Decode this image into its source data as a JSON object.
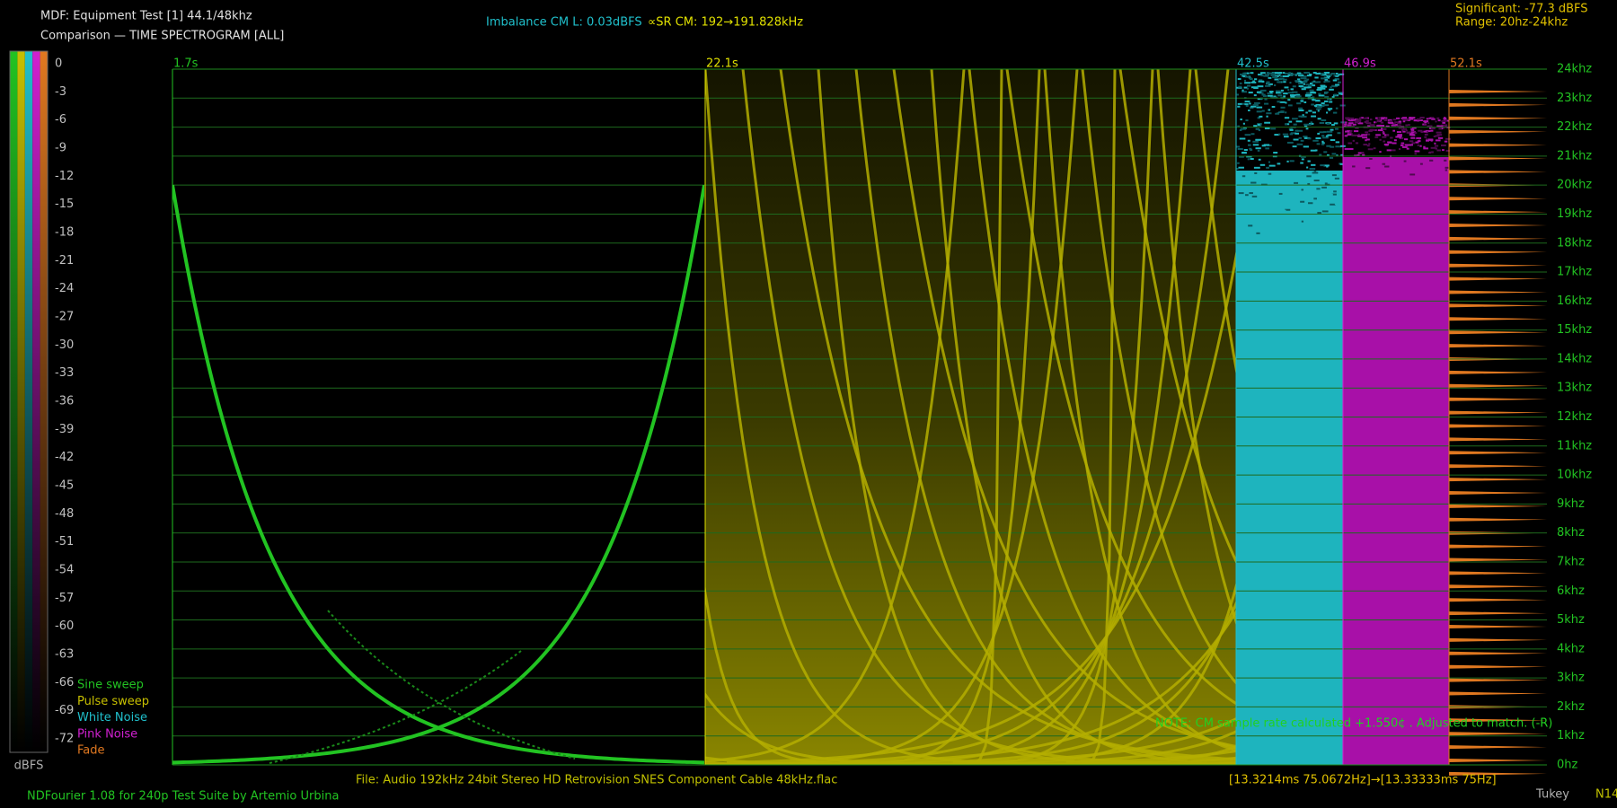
{
  "header": {
    "title": "MDF: Equipment Test [1] 44.1/48khz",
    "subtitle": "Comparison — TIME SPECTROGRAM [ALL]"
  },
  "readouts": {
    "imbalance": "Imbalance CM L: 0.03dBFS",
    "sample_rate": "∝SR CM: 192→191.828kHz",
    "significant": "Significant: -77.3 dBFS",
    "range": "Range: 20hz-24khz"
  },
  "scale": {
    "labels": [
      "0",
      "-3",
      "-6",
      "-9",
      "-12",
      "-15",
      "-18",
      "-21",
      "-24",
      "-27",
      "-30",
      "-33",
      "-36",
      "-39",
      "-42",
      "-45",
      "-48",
      "-51",
      "-54",
      "-57",
      "-60",
      "-63",
      "-66",
      "-69",
      "-72"
    ],
    "unit": "dBFS"
  },
  "legend": [
    {
      "label": "Sine sweep",
      "color": "#22c322"
    },
    {
      "label": "Pulse sweep",
      "color": "#c8c000"
    },
    {
      "label": "White Noise",
      "color": "#20c0cc"
    },
    {
      "label": "Pink Noise",
      "color": "#d020d0"
    },
    {
      "label": "Fade",
      "color": "#e07820"
    }
  ],
  "time_markers": [
    {
      "label": "1.7s",
      "color": "#22c322"
    },
    {
      "label": "22.1s",
      "color": "#e0e000"
    },
    {
      "label": "42.5s",
      "color": "#20c0cc"
    },
    {
      "label": "46.9s",
      "color": "#d020d0"
    },
    {
      "label": "52.1s",
      "color": "#e07820"
    }
  ],
  "freq_labels": [
    "24khz",
    "23khz",
    "22khz",
    "21khz",
    "20khz",
    "19khz",
    "18khz",
    "17khz",
    "16khz",
    "15khz",
    "14khz",
    "13khz",
    "12khz",
    "11khz",
    "10khz",
    "9khz",
    "8khz",
    "7khz",
    "6khz",
    "5khz",
    "4khz",
    "3khz",
    "2khz",
    "1khz",
    "0hz"
  ],
  "note": "NOTE: CM sample rate calculated +1.550¢ . Adjusted to match. (-R)",
  "footer": {
    "file": "File: Audio  192kHz 24bit Stereo HD Retrovision SNES Component Cable 48kHz.flac",
    "timing": "[13.3214ms 75.0672Hz]→[13.33333ms 75Hz]",
    "credit": "NDFourier 1.08 for 240p Test Suite by Artemio Urbina",
    "window": "Tukey",
    "n": "N14"
  }
}
